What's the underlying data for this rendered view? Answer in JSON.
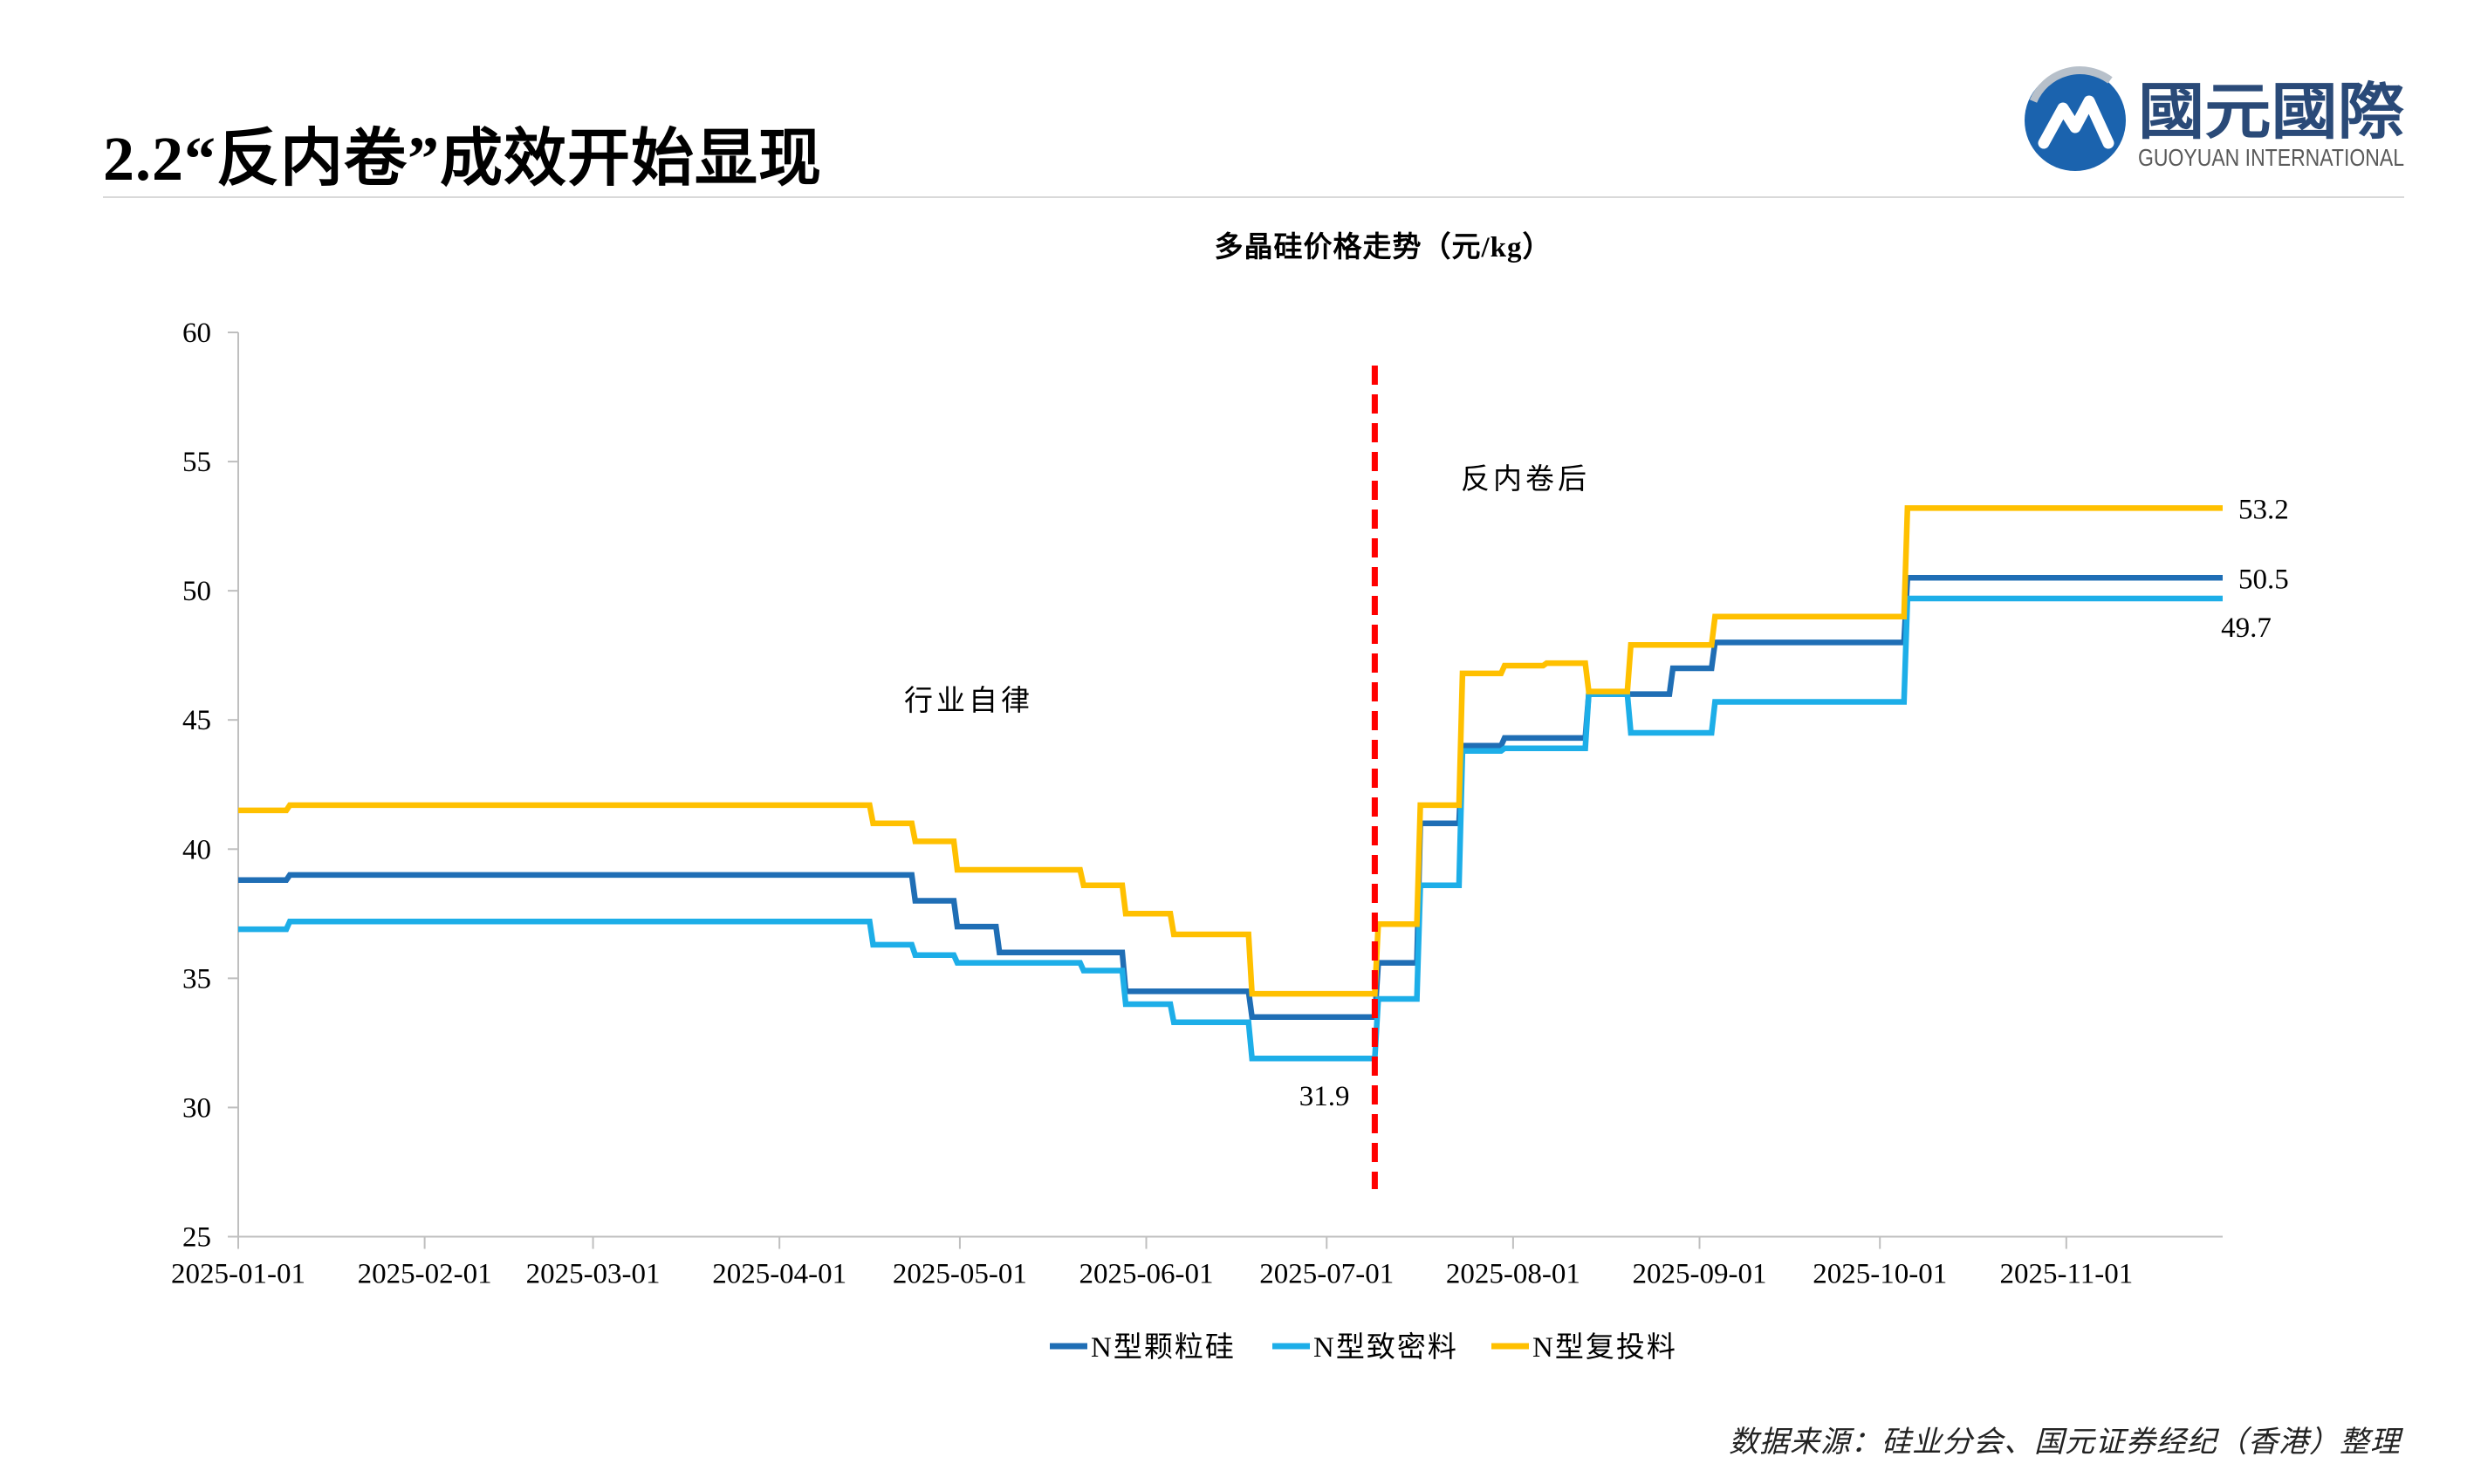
{
  "slide": {
    "title": "2.2“反内卷”成效开始显现",
    "source": "数据来源：硅业分会、国元证券经纪（香港）整理"
  },
  "logo": {
    "icon": "guoyuan-logo-icon",
    "name_cn": "國元國際",
    "name_en": "GUOYUAN INTERNATIONAL"
  },
  "chart_data": {
    "type": "line",
    "step": true,
    "title": "多晶硅价格走势（元/kg）",
    "xlabel": "",
    "ylabel": "",
    "x_range": [
      "2025-01-01",
      "2025-11-27"
    ],
    "ylim": [
      25,
      60
    ],
    "yticks": [
      25,
      30,
      35,
      40,
      45,
      50,
      55,
      60
    ],
    "xticks": [
      "2025-01-01",
      "2025-02-01",
      "2025-03-01",
      "2025-04-01",
      "2025-05-01",
      "2025-06-01",
      "2025-07-01",
      "2025-08-01",
      "2025-09-01",
      "2025-10-01",
      "2025-11-01"
    ],
    "grid": false,
    "legend": "bottom",
    "series": [
      {
        "name": "N型颗粒硅",
        "color": "#1F6EB5",
        "points": [
          [
            "2025-01-01",
            38.8
          ],
          [
            "2025-01-09",
            39.0
          ],
          [
            "2025-04-23",
            38.0
          ],
          [
            "2025-04-30",
            37.0
          ],
          [
            "2025-05-07",
            36.0
          ],
          [
            "2025-05-28",
            34.5
          ],
          [
            "2025-06-18",
            33.5
          ],
          [
            "2025-07-09",
            35.6
          ],
          [
            "2025-07-16",
            41.0
          ],
          [
            "2025-07-23",
            44.0
          ],
          [
            "2025-07-30",
            44.3
          ],
          [
            "2025-08-13",
            46.0
          ],
          [
            "2025-08-27",
            47.0
          ],
          [
            "2025-09-03",
            48.0
          ],
          [
            "2025-10-05",
            50.5
          ]
        ],
        "labels": [
          {
            "text": "50.5",
            "x": "2025-11-27",
            "y": 50.5
          }
        ]
      },
      {
        "name": "N型致密料",
        "color": "#1DAEE8",
        "points": [
          [
            "2025-01-01",
            36.9
          ],
          [
            "2025-01-09",
            37.2
          ],
          [
            "2025-04-16",
            36.3
          ],
          [
            "2025-04-23",
            35.9
          ],
          [
            "2025-04-30",
            35.6
          ],
          [
            "2025-05-21",
            35.3
          ],
          [
            "2025-05-28",
            34.0
          ],
          [
            "2025-06-05",
            33.3
          ],
          [
            "2025-06-18",
            31.9
          ],
          [
            "2025-07-09",
            34.2
          ],
          [
            "2025-07-16",
            38.6
          ],
          [
            "2025-07-23",
            43.8
          ],
          [
            "2025-07-30",
            43.9
          ],
          [
            "2025-08-13",
            46.0
          ],
          [
            "2025-08-20",
            44.5
          ],
          [
            "2025-09-03",
            45.7
          ],
          [
            "2025-10-05",
            49.7
          ]
        ],
        "labels": [
          {
            "text": "49.7",
            "x": "2025-11-27",
            "y": 49.7
          },
          {
            "text": "31.9",
            "x": "2025-06-18",
            "y": 31.9
          }
        ]
      },
      {
        "name": "N型复投料",
        "color": "#FFC000",
        "points": [
          [
            "2025-01-01",
            41.5
          ],
          [
            "2025-01-09",
            41.7
          ],
          [
            "2025-04-16",
            41.0
          ],
          [
            "2025-04-23",
            40.3
          ],
          [
            "2025-04-30",
            39.2
          ],
          [
            "2025-05-21",
            38.6
          ],
          [
            "2025-05-28",
            37.5
          ],
          [
            "2025-06-05",
            36.7
          ],
          [
            "2025-06-18",
            34.4
          ],
          [
            "2025-07-09",
            37.1
          ],
          [
            "2025-07-16",
            41.7
          ],
          [
            "2025-07-23",
            46.8
          ],
          [
            "2025-07-30",
            47.1
          ],
          [
            "2025-08-06",
            47.2
          ],
          [
            "2025-08-13",
            46.1
          ],
          [
            "2025-08-20",
            47.9
          ],
          [
            "2025-09-03",
            49.0
          ],
          [
            "2025-10-05",
            53.2
          ]
        ],
        "labels": [
          {
            "text": "53.2",
            "x": "2025-11-27",
            "y": 53.2
          }
        ]
      }
    ],
    "annotations": [
      {
        "text": "行业自律"
      },
      {
        "text": "反内卷后"
      }
    ]
  }
}
